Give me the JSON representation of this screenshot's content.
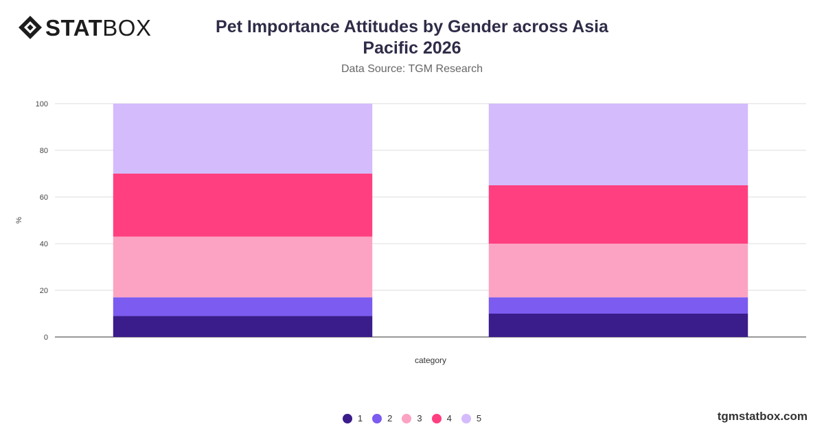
{
  "brand": {
    "bold": "STAT",
    "light": "BOX",
    "logo_icon": "statbox-diamond-icon"
  },
  "header": {
    "title": "Pet Importance Attitudes by Gender across Asia Pacific 2026",
    "subtitle": "Data Source: TGM Research"
  },
  "footer": {
    "site": "tgmstatbox.com"
  },
  "chart_data": {
    "type": "bar",
    "stacked": true,
    "title": "Pet Importance Attitudes by Gender across Asia Pacific 2026",
    "subtitle": "Data Source: TGM Research",
    "xlabel": "category",
    "ylabel": "%",
    "ylim": [
      0,
      100
    ],
    "yticks": [
      0,
      20,
      40,
      60,
      80,
      100
    ],
    "grid": true,
    "legend_position": "bottom",
    "categories": [
      "",
      ""
    ],
    "series": [
      {
        "name": "1",
        "color": "#3a1c8a",
        "values": [
          9,
          10
        ]
      },
      {
        "name": "2",
        "color": "#7b5bf0",
        "values": [
          8,
          7
        ]
      },
      {
        "name": "3",
        "color": "#fca3c3",
        "values": [
          26,
          23
        ]
      },
      {
        "name": "4",
        "color": "#ff3f80",
        "values": [
          27,
          25
        ]
      },
      {
        "name": "5",
        "color": "#d4bbfc",
        "values": [
          30,
          35
        ]
      }
    ]
  }
}
